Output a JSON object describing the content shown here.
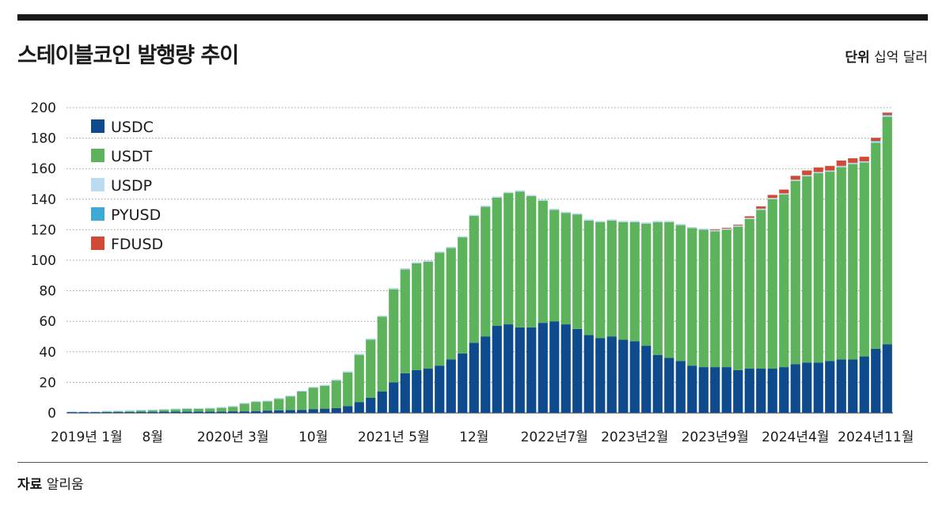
{
  "header": {
    "title": "스테이블코인 발행량 추이",
    "unit_label": "단위",
    "unit_value": "십억 달러"
  },
  "footer": {
    "source_label": "자료",
    "source_value": "알리움"
  },
  "chart_data": {
    "type": "stacked-bar",
    "title": "스테이블코인 발행량 추이",
    "ylabel": "십억 달러",
    "ylim": [
      0,
      200
    ],
    "yticks": [
      0,
      20,
      40,
      60,
      80,
      100,
      120,
      140,
      160,
      180,
      200
    ],
    "grid": "horizontal-dotted",
    "legend": "top-left",
    "x_tick_labels": [
      {
        "index": 0,
        "label": "2019년 1월"
      },
      {
        "index": 7,
        "label": "8월"
      },
      {
        "index": 14,
        "label": "2020년 3월"
      },
      {
        "index": 21,
        "label": "10월"
      },
      {
        "index": 28,
        "label": "2021년 5월"
      },
      {
        "index": 35,
        "label": "12월"
      },
      {
        "index": 42,
        "label": "2022년7월"
      },
      {
        "index": 49,
        "label": "2023년2월"
      },
      {
        "index": 56,
        "label": "2023년9월"
      },
      {
        "index": 63,
        "label": "2024년4월"
      },
      {
        "index": 70,
        "label": "2024년11월"
      }
    ],
    "series": [
      {
        "name": "USDC",
        "color": "#0e4a8c",
        "values": [
          0.5,
          0.5,
          0.5,
          0.6,
          0.6,
          0.6,
          0.7,
          0.7,
          0.8,
          0.8,
          0.8,
          0.8,
          0.8,
          0.8,
          1,
          1,
          1.2,
          1.5,
          1.7,
          1.8,
          2,
          2.5,
          2.8,
          3.2,
          4.5,
          7,
          10,
          14,
          20,
          26,
          28,
          29,
          31,
          35,
          39,
          46,
          50,
          57,
          58,
          56,
          56,
          59,
          60,
          58,
          55,
          51,
          49,
          50,
          48,
          47,
          44,
          38,
          36,
          34,
          31,
          30,
          30,
          30,
          28,
          29,
          29,
          29,
          30,
          32,
          33,
          33,
          34,
          35,
          35,
          37,
          42,
          45
        ]
      },
      {
        "name": "USDT",
        "color": "#5db35c",
        "values": [
          0,
          0,
          0,
          0.2,
          0.4,
          0.6,
          0.8,
          1,
          1.2,
          1.5,
          1.8,
          1.8,
          2,
          2.5,
          3,
          5,
          6,
          6,
          7.5,
          9,
          12,
          14,
          15,
          18,
          22,
          31,
          38,
          49,
          61,
          68,
          70,
          70,
          74,
          73,
          76,
          83,
          85,
          84,
          86,
          89,
          86,
          80,
          73,
          73,
          75,
          75,
          76,
          76,
          77,
          78,
          80,
          87,
          89,
          89,
          90,
          90,
          89,
          90,
          94,
          98,
          104,
          111,
          113,
          120,
          122,
          124,
          124,
          126,
          128,
          127,
          135,
          149
        ]
      },
      {
        "name": "USDP",
        "color": "#b9dcf3",
        "values": [
          0.5,
          0.5,
          0.5,
          0.6,
          0.6,
          0.6,
          0.6,
          0.6,
          0.6,
          0.6,
          0.6,
          0.6,
          0.6,
          0.6,
          0.6,
          0.6,
          0.6,
          0.6,
          0.6,
          0.6,
          0.6,
          0.6,
          0.6,
          0.8,
          0.8,
          0.8,
          0.8,
          0.8,
          0.8,
          0.8,
          0.8,
          0.8,
          0.8,
          0.8,
          0.8,
          0.8,
          0.8,
          0.8,
          0.8,
          0.8,
          0.8,
          0.8,
          0.8,
          0.8,
          0.8,
          0.8,
          0.8,
          0.8,
          0.8,
          0.8,
          0.8,
          0.8,
          0.8,
          0.8,
          0.8,
          0.8,
          0.8,
          0.8,
          0.8,
          0.8,
          0.8,
          0.8,
          0.8,
          0.8,
          0.8,
          0.8,
          0.8,
          0.8,
          0.8,
          0.8,
          0.8,
          0.8
        ]
      },
      {
        "name": "PYUSD",
        "color": "#3fa9d6",
        "values": [
          0,
          0,
          0,
          0,
          0,
          0,
          0,
          0,
          0,
          0,
          0,
          0,
          0,
          0,
          0,
          0,
          0,
          0,
          0,
          0,
          0,
          0,
          0,
          0,
          0,
          0,
          0,
          0,
          0,
          0,
          0,
          0,
          0,
          0,
          0,
          0,
          0,
          0,
          0,
          0,
          0,
          0,
          0,
          0,
          0,
          0,
          0,
          0,
          0,
          0,
          0,
          0,
          0,
          0,
          0,
          0,
          0,
          0,
          0,
          0,
          0,
          0,
          0,
          0,
          0,
          0,
          0,
          0,
          0,
          0,
          0.4,
          0.4
        ]
      },
      {
        "name": "FDUSD",
        "color": "#d04a35",
        "values": [
          0,
          0,
          0,
          0,
          0,
          0,
          0,
          0,
          0,
          0,
          0,
          0,
          0,
          0,
          0,
          0,
          0,
          0,
          0,
          0,
          0,
          0,
          0,
          0,
          0,
          0,
          0,
          0,
          0,
          0,
          0,
          0,
          0,
          0,
          0,
          0,
          0,
          0,
          0,
          0,
          0,
          0,
          0,
          0,
          0,
          0,
          0,
          0,
          0,
          0,
          0,
          0,
          0,
          0,
          0,
          0,
          0.5,
          0.5,
          0.5,
          1,
          1.5,
          2,
          2.5,
          2.5,
          3,
          3,
          3,
          3.5,
          3,
          3,
          2,
          1.5
        ]
      }
    ]
  }
}
